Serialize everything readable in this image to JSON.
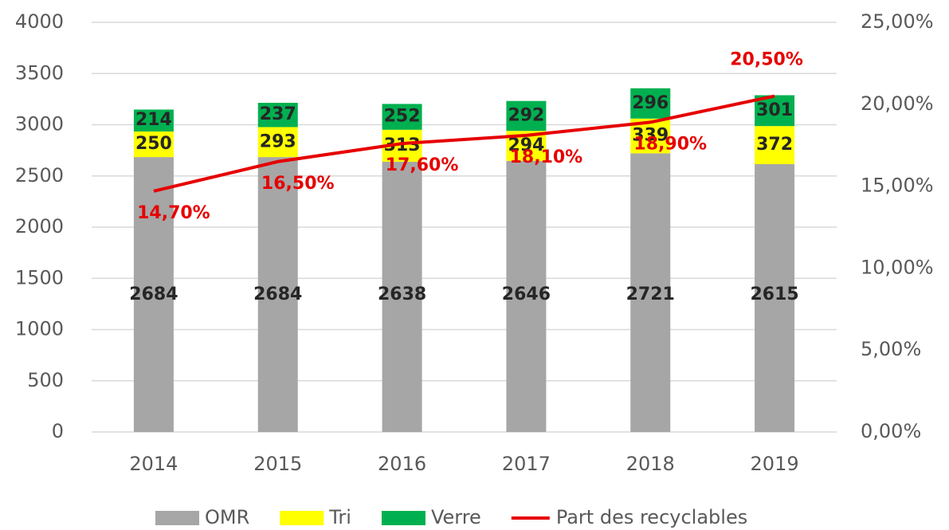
{
  "chart_data": {
    "type": "bar",
    "stacked": true,
    "categories": [
      "2014",
      "2015",
      "2016",
      "2017",
      "2018",
      "2019"
    ],
    "series": [
      {
        "name": "OMR",
        "color": "#a6a6a6",
        "values": [
          2684,
          2684,
          2638,
          2646,
          2721,
          2615
        ]
      },
      {
        "name": "Tri",
        "color": "#ffff00",
        "values": [
          250,
          293,
          313,
          294,
          339,
          372
        ]
      },
      {
        "name": "Verre",
        "color": "#00b050",
        "values": [
          214,
          237,
          252,
          292,
          296,
          301
        ]
      },
      {
        "name": "Part des recyclables",
        "type": "line",
        "axis": "y2",
        "color": "#e60000",
        "values": [
          14.7,
          16.5,
          17.6,
          18.1,
          18.9,
          20.5
        ],
        "value_labels": [
          "14,70%",
          "16,50%",
          "17,60%",
          "18,10%",
          "18,90%",
          "20,50%"
        ]
      }
    ],
    "ylim": [
      0,
      4000
    ],
    "yticks": [
      0,
      500,
      1000,
      1500,
      2000,
      2500,
      3000,
      3500,
      4000
    ],
    "y2lim": [
      0,
      25
    ],
    "y2ticks": [
      {
        "value": 0,
        "label": "0,00%"
      },
      {
        "value": 5,
        "label": "5,00%"
      },
      {
        "value": 10,
        "label": "10,00%"
      },
      {
        "value": 15,
        "label": "15,00%"
      },
      {
        "value": 20,
        "label": "20,00%"
      },
      {
        "value": 25,
        "label": "25,00%"
      }
    ],
    "grid": true,
    "legend": "bottom"
  }
}
